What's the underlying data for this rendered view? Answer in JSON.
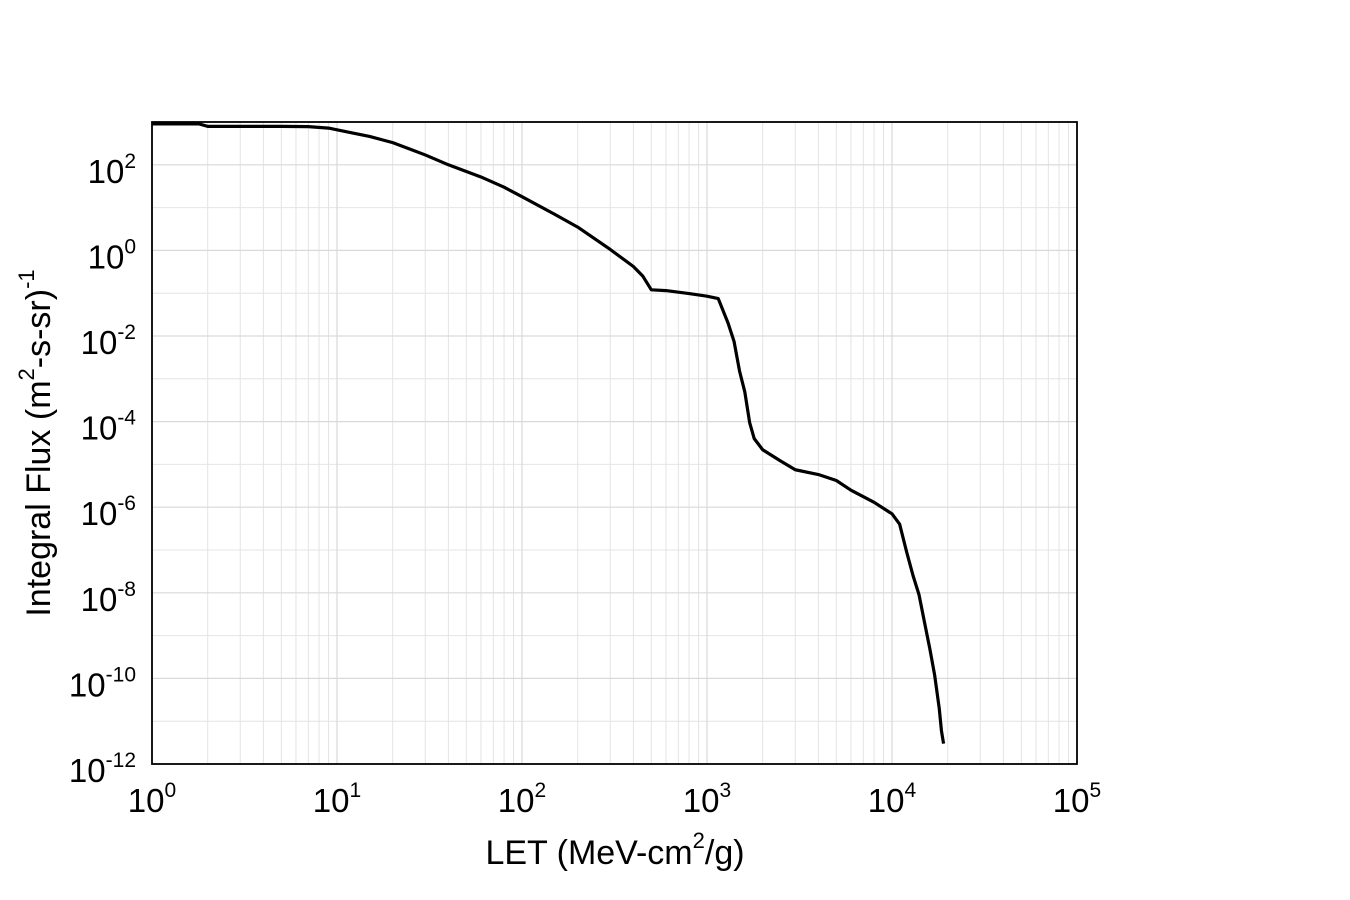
{
  "chart_data": {
    "type": "line",
    "title": "",
    "xscale": "log",
    "yscale": "log",
    "xlim": [
      1,
      100000
    ],
    "ylim": [
      1e-12,
      1000
    ],
    "grid": true,
    "xlabel": {
      "prefix": "LET (MeV-cm",
      "superscript": "2",
      "suffix": "/g)"
    },
    "ylabel": {
      "prefix": "Integral Flux (m",
      "superscript1": "2",
      "middle": "-s-sr)",
      "superscript2": "-1"
    },
    "x_ticks": [
      {
        "base": "10",
        "exp": "0",
        "value": 1
      },
      {
        "base": "10",
        "exp": "1",
        "value": 10
      },
      {
        "base": "10",
        "exp": "2",
        "value": 100
      },
      {
        "base": "10",
        "exp": "3",
        "value": 1000
      },
      {
        "base": "10",
        "exp": "4",
        "value": 10000
      },
      {
        "base": "10",
        "exp": "5",
        "value": 100000
      }
    ],
    "y_ticks": [
      {
        "base": "10",
        "exp": "2",
        "value": 100
      },
      {
        "base": "10",
        "exp": "0",
        "value": 1
      },
      {
        "base": "10",
        "exp": "-2",
        "value": 0.01
      },
      {
        "base": "10",
        "exp": "-4",
        "value": 0.0001
      },
      {
        "base": "10",
        "exp": "-6",
        "value": 1e-06
      },
      {
        "base": "10",
        "exp": "-8",
        "value": 1e-08
      },
      {
        "base": "10",
        "exp": "-10",
        "value": 1e-10
      },
      {
        "base": "10",
        "exp": "-12",
        "value": 1e-12
      }
    ],
    "series": [
      {
        "color": "#000000",
        "points": [
          [
            1.0,
            900
          ],
          [
            1.8,
            900
          ],
          [
            2.0,
            790
          ],
          [
            3.0,
            790
          ],
          [
            5.0,
            790
          ],
          [
            7.0,
            780
          ],
          [
            9.0,
            720
          ],
          [
            12.0,
            560
          ],
          [
            15.0,
            460
          ],
          [
            20.0,
            330
          ],
          [
            25.0,
            230
          ],
          [
            30.0,
            170
          ],
          [
            40.0,
            100
          ],
          [
            60.0,
            52
          ],
          [
            80.0,
            30
          ],
          [
            100.0,
            18
          ],
          [
            150.0,
            7
          ],
          [
            200.0,
            3.5
          ],
          [
            300.0,
            1.05
          ],
          [
            400.0,
            0.42
          ],
          [
            450.0,
            0.25
          ],
          [
            500.0,
            0.12
          ],
          [
            600.0,
            0.115
          ],
          [
            800.0,
            0.098
          ],
          [
            1000.0,
            0.085
          ],
          [
            1150.0,
            0.075
          ],
          [
            1300.0,
            0.02
          ],
          [
            1400.0,
            0.0075
          ],
          [
            1500.0,
            0.0015
          ],
          [
            1600.0,
            0.0005
          ],
          [
            1700.0,
            9.5e-05
          ],
          [
            1800.0,
            4e-05
          ],
          [
            2000.0,
            2.2e-05
          ],
          [
            2500.0,
            1.2e-05
          ],
          [
            3000.0,
            7.5e-06
          ],
          [
            4000.0,
            5.8e-06
          ],
          [
            5000.0,
            4.2e-06
          ],
          [
            6000.0,
            2.5e-06
          ],
          [
            8000.0,
            1.3e-06
          ],
          [
            10000.0,
            7e-07
          ],
          [
            11000.0,
            4e-07
          ],
          [
            12000.0,
            9e-08
          ],
          [
            13000.0,
            2.5e-08
          ],
          [
            14000.0,
            9e-09
          ],
          [
            15000.0,
            2e-09
          ],
          [
            16000.0,
            5e-10
          ],
          [
            17000.0,
            1.2e-10
          ],
          [
            18000.0,
            2e-11
          ],
          [
            18500.0,
            6e-12
          ],
          [
            19000.0,
            3e-12
          ]
        ]
      }
    ]
  }
}
